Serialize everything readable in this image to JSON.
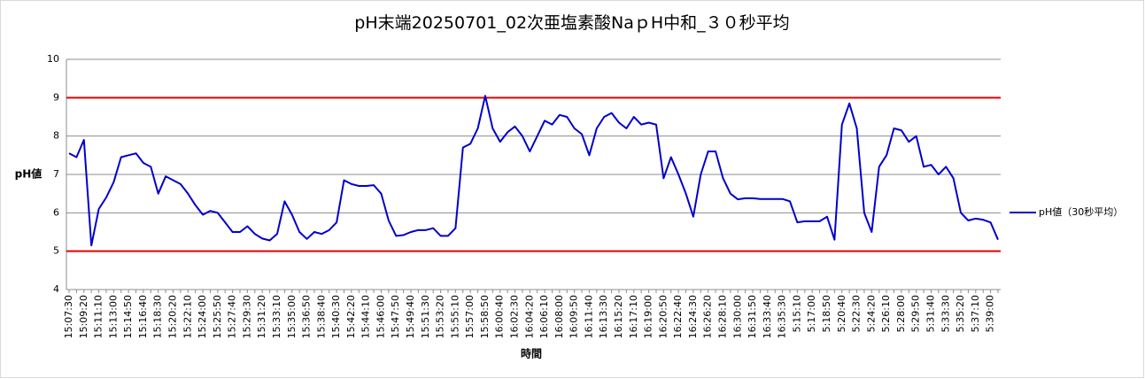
{
  "chart_data": {
    "type": "line",
    "title": "pH末端20250701_02次亜塩素酸NaｐH中和_３０秒平均",
    "x_label": "時間",
    "y_label": "pH値",
    "categories": [
      "15:07:30",
      null,
      "15:09:20",
      null,
      "15:11:10",
      null,
      "15:13:00",
      null,
      "15:14:50",
      null,
      "15:16:40",
      null,
      "15:18:30",
      null,
      "15:20:20",
      null,
      "15:22:10",
      null,
      "15:24:00",
      null,
      "15:25:50",
      null,
      "15:27:40",
      null,
      "15:29:30",
      null,
      "15:31:20",
      null,
      "15:33:10",
      null,
      "15:35:00",
      null,
      "15:36:50",
      null,
      "15:38:40",
      null,
      "15:40:30",
      null,
      "15:42:20",
      null,
      "15:44:10",
      null,
      "15:46:00",
      null,
      "15:47:50",
      null,
      "15:49:40",
      null,
      "15:51:30",
      null,
      "15:53:20",
      null,
      "15:55:10",
      null,
      "15:57:00",
      null,
      "15:58:50",
      null,
      "16:00:40",
      null,
      "16:02:30",
      null,
      "16:04:20",
      null,
      "16:06:10",
      null,
      "16:08:00",
      null,
      "16:09:50",
      null,
      "16:11:40",
      null,
      "16:13:30",
      null,
      "16:15:20",
      null,
      "16:17:10",
      null,
      "16:19:00",
      null,
      "16:20:50",
      null,
      "16:22:40",
      null,
      "16:24:30",
      null,
      "16:26:20",
      null,
      "16:28:10",
      null,
      "16:30:00",
      null,
      "16:31:50",
      null,
      "16:33:40",
      null,
      "16:35:30",
      null,
      "5:15:10",
      null,
      "5:17:00",
      null,
      "5:18:50",
      null,
      "5:20:40",
      null,
      "5:22:30",
      null,
      "5:24:20",
      null,
      "5:26:10",
      null,
      "5:28:00",
      null,
      "5:29:50",
      null,
      "5:31:40",
      null,
      "5:33:30",
      null,
      "5:35:20",
      null,
      "5:37:10",
      null,
      "5:39:00",
      null
    ],
    "series": [
      {
        "name": "pH値（30秒平均）",
        "color": "#0000cc",
        "values": [
          7.55,
          7.45,
          7.9,
          5.15,
          6.1,
          6.4,
          6.8,
          7.45,
          7.5,
          7.55,
          7.3,
          7.2,
          6.5,
          6.95,
          6.85,
          6.75,
          6.5,
          6.2,
          5.95,
          6.05,
          6.0,
          5.75,
          5.5,
          5.5,
          5.65,
          5.45,
          5.33,
          5.28,
          5.45,
          6.3,
          5.95,
          5.5,
          5.32,
          5.5,
          5.45,
          5.55,
          5.75,
          6.85,
          6.75,
          6.7,
          6.7,
          6.72,
          6.5,
          5.8,
          5.4,
          5.42,
          5.5,
          5.55,
          5.55,
          5.6,
          5.4,
          5.4,
          5.6,
          7.7,
          7.8,
          8.2,
          9.05,
          8.2,
          7.85,
          8.1,
          8.25,
          8.0,
          7.6,
          8.0,
          8.4,
          8.3,
          8.55,
          8.5,
          8.2,
          8.05,
          7.5,
          8.2,
          8.5,
          8.6,
          8.35,
          8.2,
          8.5,
          8.3,
          8.35,
          8.3,
          6.9,
          7.45,
          7.0,
          6.5,
          5.9,
          7.0,
          7.6,
          7.6,
          6.9,
          6.5,
          6.35,
          6.38,
          6.38,
          6.36,
          6.36,
          6.36,
          6.36,
          6.3,
          5.75,
          5.78,
          5.78,
          5.78,
          5.9,
          5.3,
          8.3,
          8.85,
          8.2,
          6.0,
          5.5,
          7.2,
          7.5,
          8.2,
          8.15,
          7.85,
          8.0,
          7.2,
          7.25,
          7.0,
          7.2,
          6.9,
          6.0,
          5.8,
          5.85,
          5.82,
          5.75,
          5.3
        ]
      }
    ],
    "reference_lines": {
      "values": [
        5,
        9
      ],
      "color": "#e00000"
    },
    "ylim": [
      4,
      10
    ],
    "yticks": [
      4,
      5,
      6,
      7,
      8,
      9,
      10
    ],
    "grid": true,
    "legend": "right"
  }
}
